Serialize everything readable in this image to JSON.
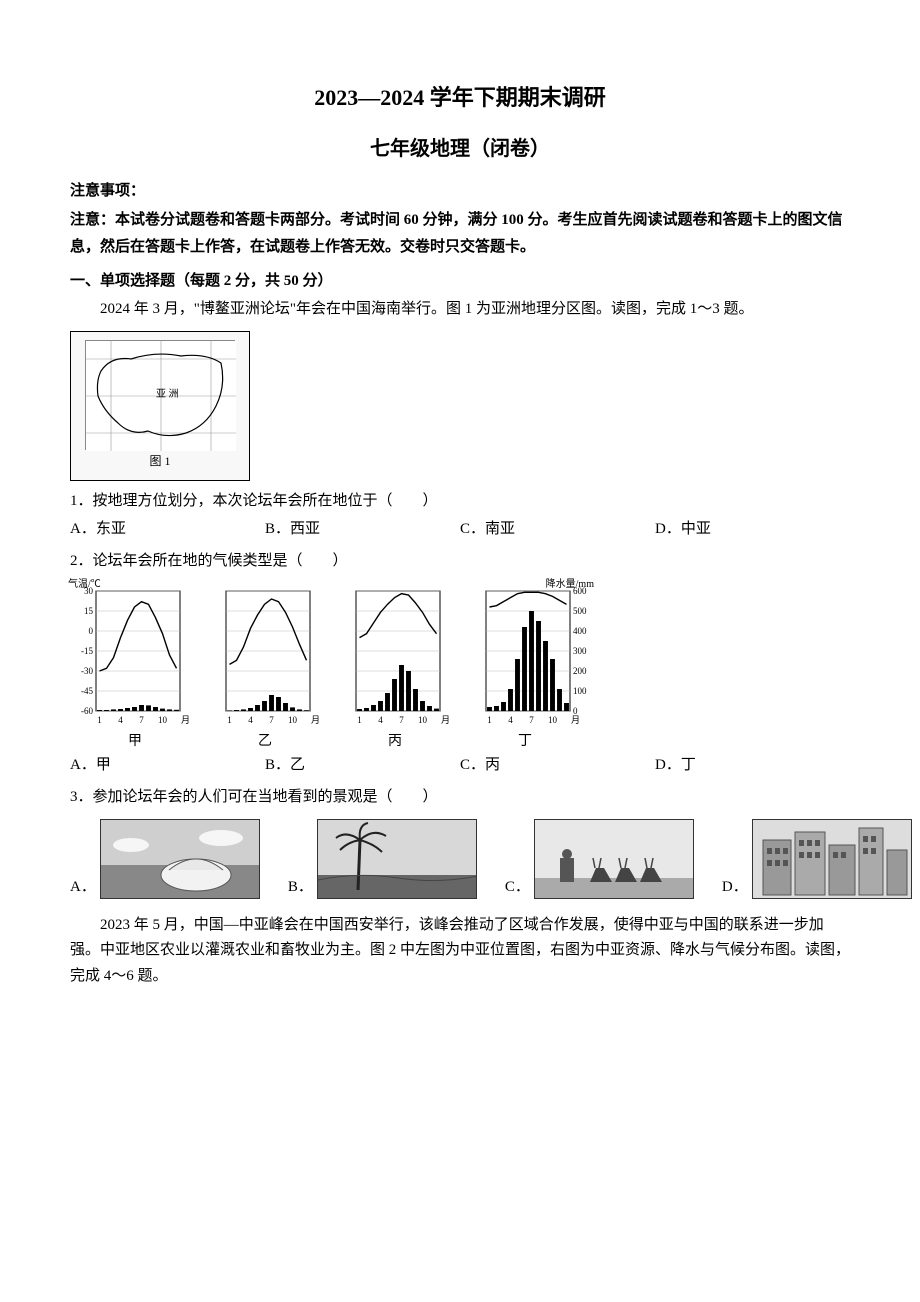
{
  "header": {
    "title_main": "2023—2024 学年下期期末调研",
    "title_sub": "七年级地理（闭卷）"
  },
  "notice": {
    "head": "注意事项：",
    "body": "注意：本试卷分试题卷和答题卡两部分。考试时间 60 分钟，满分 100 分。考生应首先阅读试题卷和答题卡上的图文信息，然后在答题卡上作答，在试题卷上作答无效。交卷时只交答题卡。"
  },
  "section1": {
    "head": "一、单项选择题（每题 2 分，共 50 分）",
    "intro1": "2024 年 3 月，\"博鳌亚洲论坛\"年会在中国海南举行。图 1 为亚洲地理分区图。读图，完成 1～3 题。",
    "figure1_label": "图 1",
    "q1": "1．按地理方位划分，本次论坛年会所在地位于（　　）",
    "q1_opts": {
      "A": "A．东亚",
      "B": "B．西亚",
      "C": "C．南亚",
      "D": "D．中亚"
    },
    "q2": "2．论坛年会所在地的气候类型是（　　）",
    "climate": {
      "left_axis_label": "气温/℃",
      "right_axis_label": "降水量/mm",
      "left_ticks": [
        30,
        15,
        0,
        -15,
        -30,
        -45,
        -60
      ],
      "right_ticks": [
        600,
        500,
        400,
        300,
        200,
        100,
        0
      ],
      "x_ticks": [
        "1",
        "4",
        "7",
        "10",
        "月"
      ],
      "charts": [
        {
          "label": "甲",
          "temp": [
            -30,
            -28,
            -20,
            -5,
            8,
            18,
            22,
            20,
            10,
            -2,
            -18,
            -28
          ],
          "precip": [
            5,
            5,
            8,
            10,
            15,
            20,
            30,
            28,
            20,
            12,
            8,
            6
          ],
          "line_color": "#000000",
          "bar_color": "#000000"
        },
        {
          "label": "乙",
          "temp": [
            -25,
            -22,
            -12,
            2,
            12,
            20,
            24,
            22,
            14,
            3,
            -10,
            -22
          ],
          "precip": [
            3,
            5,
            8,
            15,
            30,
            50,
            80,
            70,
            40,
            18,
            8,
            4
          ],
          "line_color": "#000000",
          "bar_color": "#000000"
        },
        {
          "label": "丙",
          "temp": [
            -5,
            -2,
            6,
            14,
            20,
            25,
            28,
            27,
            21,
            14,
            5,
            -2
          ],
          "precip": [
            10,
            15,
            30,
            50,
            90,
            160,
            230,
            200,
            110,
            50,
            25,
            12
          ],
          "line_color": "#000000",
          "bar_color": "#000000"
        },
        {
          "label": "丁",
          "temp": [
            18,
            19,
            22,
            25,
            28,
            29,
            29,
            29,
            28,
            26,
            23,
            20
          ],
          "precip": [
            20,
            25,
            45,
            110,
            260,
            420,
            500,
            450,
            350,
            260,
            110,
            40
          ],
          "line_color": "#000000",
          "bar_color": "#000000"
        }
      ],
      "chart_bg": "#ffffff",
      "grid_color": "#bbbbbb",
      "temp_ylim": [
        -60,
        30
      ],
      "precip_ylim": [
        0,
        600
      ],
      "font_size": 9
    },
    "q2_opts": {
      "A": "A．甲",
      "B": "B．乙",
      "C": "C．丙",
      "D": "D．丁"
    },
    "q3": "3．参加论坛年会的人们可在当地看到的景观是（　　）",
    "q3_opts": {
      "A": "A．",
      "B": "B．",
      "C": "C．",
      "D": "D．"
    },
    "intro2": "2023 年 5 月，中国—中亚峰会在中国西安举行，该峰会推动了区域合作发展，使得中亚与中国的联系进一步加强。中亚地区农业以灌溉农业和畜牧业为主。图 2 中左图为中亚位置图，右图为中亚资源、降水与气候分布图。读图，完成 4～6 题。"
  },
  "styling": {
    "page_bg": "#ffffff",
    "text_color": "#000000",
    "body_font_size": 15,
    "title_font_size_main": 22,
    "title_font_size_sub": 20,
    "font_family": "SimSun"
  }
}
